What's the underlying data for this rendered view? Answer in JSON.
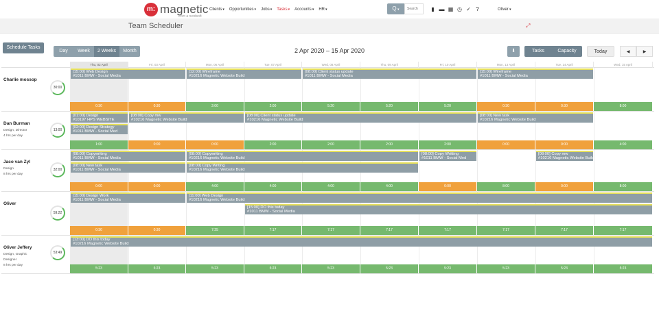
{
  "brand": {
    "mark": "m:",
    "name": "magnetic",
    "tag": "from a nerdsoft"
  },
  "nav": [
    {
      "label": "Clients",
      "active": false
    },
    {
      "label": "Opportunities",
      "active": false
    },
    {
      "label": "Jobs",
      "active": false
    },
    {
      "label": "Tasks",
      "active": true
    },
    {
      "label": "Accounts",
      "active": false
    },
    {
      "label": "HR",
      "active": false
    }
  ],
  "search": {
    "button": "Q",
    "placeholder": "Search"
  },
  "top_icons": [
    "bar-chart-icon",
    "folder-icon",
    "calendar-icon",
    "clock-icon",
    "check-circle-icon",
    "help-icon"
  ],
  "user": {
    "name": "Oliver"
  },
  "page_title": "Team Scheduler",
  "toolbar": {
    "schedule": "Schedule Tasks",
    "day": "Day",
    "week": "Week",
    "two_weeks": "2 Weeks",
    "month": "Month",
    "range": "2 Apr 2020 – 15 Apr 2020",
    "download": "⬇",
    "tasks": "Tasks",
    "capacity": "Capacity",
    "today": "Today",
    "prev": "◀",
    "next": "▶"
  },
  "days": [
    "Thu, 02 April",
    "Fri, 03 April",
    "Mon, 06 April",
    "Tue, 07 April",
    "Wed, 08 April",
    "Thu, 09 April",
    "Fri, 10 April",
    "Mon, 13 April",
    "Tue, 14 April",
    "Wed, 15 April"
  ],
  "people": [
    {
      "name": "Charlie mossop",
      "meta": [],
      "ring": "30:00",
      "tasks": [
        {
          "line1": "[15:00] Web Design",
          "line2": "#1011 BMW - Social Media",
          "start": 0,
          "span": 2,
          "lane": 0
        },
        {
          "line1": "[12:00] Wireframe",
          "line2": "#10216 Magnetic Website Build",
          "start": 2,
          "span": 2,
          "lane": 0
        },
        {
          "line1": "[08:00] Client status update",
          "line2": "#1011 BMW - Social Media",
          "start": 4,
          "span": 3,
          "lane": 0
        },
        {
          "line1": "[15:00] Wireframe",
          "line2": "#1011 BMW - Social Media",
          "start": 7,
          "span": 2,
          "lane": 0
        }
      ],
      "caps": [
        {
          "v": "0:30",
          "c": "o"
        },
        {
          "v": "0:30",
          "c": "o"
        },
        {
          "v": "2:00",
          "c": "g"
        },
        {
          "v": "2:00",
          "c": "g"
        },
        {
          "v": "5:20",
          "c": "g"
        },
        {
          "v": "5:20",
          "c": "g"
        },
        {
          "v": "5:20",
          "c": "g"
        },
        {
          "v": "0:30",
          "c": "o"
        },
        {
          "v": "0:30",
          "c": "o"
        },
        {
          "v": "8:00",
          "c": "g"
        }
      ]
    },
    {
      "name": "Dan Burman",
      "meta": [
        "Design, Director",
        "4 hrs per day"
      ],
      "ring": "13:00",
      "tasks": [
        {
          "line1": "[01:00] Design",
          "line2": "#10197 HPS WEBSITE",
          "start": 0,
          "span": 1,
          "lane": 0
        },
        {
          "line1": "[08:00] Copy mw",
          "line2": "#10216 Magnetic Website Build",
          "start": 1,
          "span": 2,
          "lane": 0
        },
        {
          "line1": "[08:00] Client status update",
          "line2": "#10216 Magnetic Website Build",
          "start": 3,
          "span": 4,
          "lane": 0
        },
        {
          "line1": "[08:00] New task",
          "line2": "#10216 Magnetic Website Build",
          "start": 7,
          "span": 2,
          "lane": 0
        },
        {
          "line1": "[02:00] Design Strategy",
          "line2": "#1011 BMW - Social Med",
          "start": 0,
          "span": 1,
          "lane": 1
        }
      ],
      "caps": [
        {
          "v": "1:00",
          "c": "g"
        },
        {
          "v": "0:00",
          "c": "o"
        },
        {
          "v": "0:00",
          "c": "o"
        },
        {
          "v": "2:00",
          "c": "g"
        },
        {
          "v": "2:00",
          "c": "g"
        },
        {
          "v": "2:00",
          "c": "g"
        },
        {
          "v": "2:00",
          "c": "g"
        },
        {
          "v": "0:00",
          "c": "o"
        },
        {
          "v": "0:00",
          "c": "o"
        },
        {
          "v": "4:00",
          "c": "g"
        }
      ]
    },
    {
      "name": "Jaco van Zyl",
      "meta": [
        "Design",
        "8 hrs per day"
      ],
      "ring": "32:00",
      "tasks": [
        {
          "line1": "[08:00] Copywriting",
          "line2": "#1011 BMW - Social Media",
          "start": 0,
          "span": 2,
          "lane": 0
        },
        {
          "line1": "[08:00] Copywriting",
          "line2": "#10216 Magnetic Website Build",
          "start": 2,
          "span": 4,
          "lane": 0
        },
        {
          "line1": "[08:00] Copy Writting",
          "line2": "#1011 BMW - Social Med",
          "start": 6,
          "span": 1,
          "lane": 0
        },
        {
          "line1": "[08:00] Copy mw",
          "line2": "#10216 Magnetic Website Build",
          "start": 8,
          "span": 1,
          "lane": 0
        },
        {
          "line1": "[08:00] New task",
          "line2": "#1011 BMW - Social Media",
          "start": 0,
          "span": 2,
          "lane": 1
        },
        {
          "line1": "[08:00] Copy Writing",
          "line2": "#10216 Magnetic Website Build",
          "start": 2,
          "span": 4,
          "lane": 1
        }
      ],
      "caps": [
        {
          "v": "0:00",
          "c": "o"
        },
        {
          "v": "0:00",
          "c": "o"
        },
        {
          "v": "4:00",
          "c": "g"
        },
        {
          "v": "4:00",
          "c": "g"
        },
        {
          "v": "4:00",
          "c": "g"
        },
        {
          "v": "4:00",
          "c": "g"
        },
        {
          "v": "0:00",
          "c": "o"
        },
        {
          "v": "8:00",
          "c": "g"
        },
        {
          "v": "0:00",
          "c": "o"
        },
        {
          "v": "8:00",
          "c": "g"
        }
      ]
    },
    {
      "name": "Oliver",
      "meta": [],
      "ring": "59:22",
      "tasks": [
        {
          "line1": "[15:00] Design Work",
          "line2": "#1011 BMW - Social Media",
          "start": 0,
          "span": 2,
          "lane": 0
        },
        {
          "line1": "[11:00] Web Design",
          "line2": "#10216 Magnetic Website Build",
          "start": 2,
          "span": 8,
          "lane": 0
        },
        {
          "line1": "[15:00] DO this today",
          "line2": "#1011 BMW - Social Media",
          "start": 3,
          "span": 7,
          "lane": 1
        }
      ],
      "caps": [
        {
          "v": "0:30",
          "c": "o"
        },
        {
          "v": "0:30",
          "c": "o"
        },
        {
          "v": "7:25",
          "c": "g"
        },
        {
          "v": "7:17",
          "c": "g"
        },
        {
          "v": "7:17",
          "c": "g"
        },
        {
          "v": "7:17",
          "c": "g"
        },
        {
          "v": "7:17",
          "c": "g"
        },
        {
          "v": "7:17",
          "c": "g"
        },
        {
          "v": "7:17",
          "c": "g"
        },
        {
          "v": "7:17",
          "c": "g"
        }
      ]
    },
    {
      "name": "Oliver Jeffery",
      "meta": [
        "Design, Graphic",
        "Designer",
        "8 hrs per day"
      ],
      "ring": "53:49",
      "tasks": [
        {
          "line1": "[13:00] DO this today",
          "line2": "#10216 Magnetic Website Build",
          "start": 0,
          "span": 10,
          "lane": 0
        }
      ],
      "caps": [
        {
          "v": "5:23",
          "c": "g"
        },
        {
          "v": "5:23",
          "c": "g"
        },
        {
          "v": "5:23",
          "c": "g"
        },
        {
          "v": "5:23",
          "c": "g"
        },
        {
          "v": "5:23",
          "c": "g"
        },
        {
          "v": "5:23",
          "c": "g"
        },
        {
          "v": "5:23",
          "c": "g"
        },
        {
          "v": "5:23",
          "c": "g"
        },
        {
          "v": "5:23",
          "c": "g"
        },
        {
          "v": "5:23",
          "c": "g"
        }
      ]
    }
  ]
}
